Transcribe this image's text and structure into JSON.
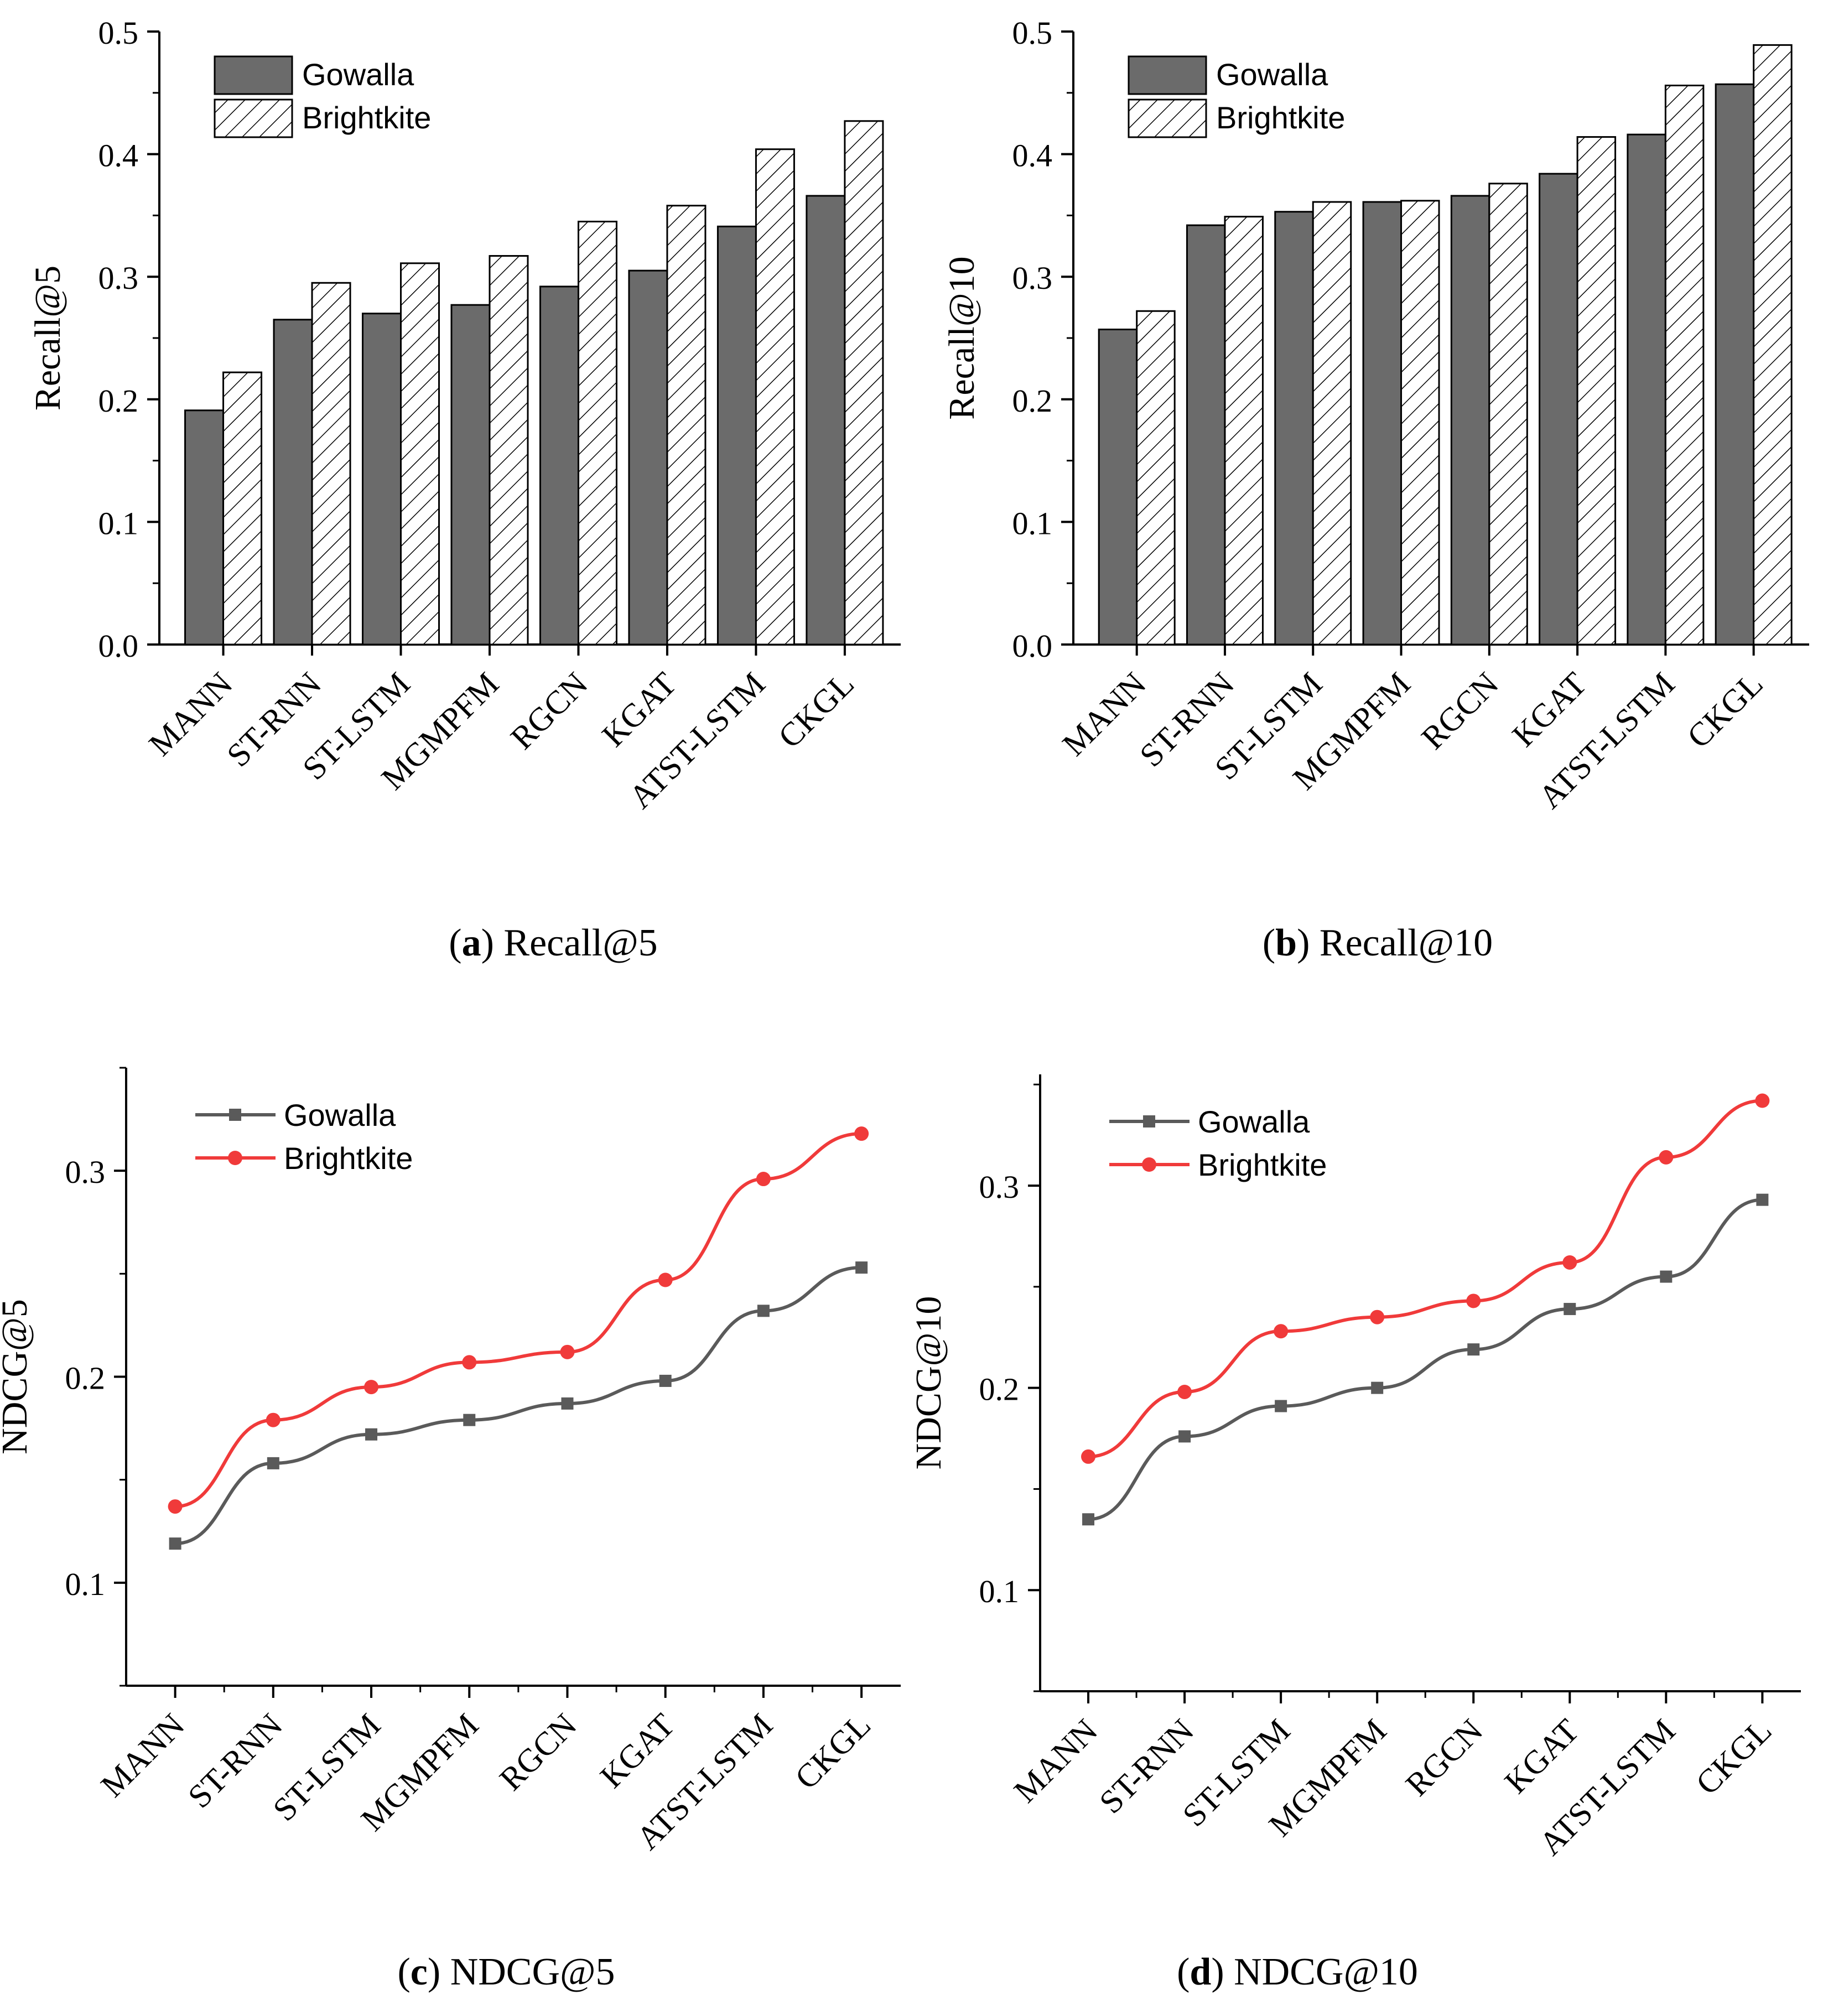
{
  "colors": {
    "gowalla_bar": "#6b6b6b",
    "gowalla_line": "#5a5a5a",
    "brightkite_line": "#f03a3a",
    "axis": "#000000"
  },
  "chart_data": [
    {
      "id": "a",
      "type": "bar",
      "caption_label": "a",
      "caption_text": "Recall@5",
      "ylabel": "Recall@5",
      "xlabel": "",
      "ylim": [
        0,
        0.5
      ],
      "yticks": [
        "0.0",
        "0.1",
        "0.2",
        "0.3",
        "0.4",
        "0.5"
      ],
      "categories": [
        "MANN",
        "ST-RNN",
        "ST-LSTM",
        "MGMPFM",
        "RGCN",
        "KGAT",
        "ATST-LSTM",
        "CKGL"
      ],
      "legend_position": "top-left",
      "series": [
        {
          "name": "Gowalla",
          "style": "solid",
          "values": [
            0.191,
            0.265,
            0.27,
            0.277,
            0.292,
            0.305,
            0.341,
            0.366
          ]
        },
        {
          "name": "Brightkite",
          "style": "hatched",
          "values": [
            0.222,
            0.295,
            0.311,
            0.317,
            0.345,
            0.358,
            0.404,
            0.427
          ]
        }
      ]
    },
    {
      "id": "b",
      "type": "bar",
      "caption_label": "b",
      "caption_text": "Recall@10",
      "ylabel": "Recall@10",
      "xlabel": "",
      "ylim": [
        0,
        0.5
      ],
      "yticks": [
        "0.0",
        "0.1",
        "0.2",
        "0.3",
        "0.4",
        "0.5"
      ],
      "categories": [
        "MANN",
        "ST-RNN",
        "ST-LSTM",
        "MGMPFM",
        "RGCN",
        "KGAT",
        "ATST-LSTM",
        "CKGL"
      ],
      "legend_position": "top-left",
      "series": [
        {
          "name": "Gowalla",
          "style": "solid",
          "values": [
            0.257,
            0.342,
            0.353,
            0.361,
            0.366,
            0.384,
            0.416,
            0.457
          ]
        },
        {
          "name": "Brightkite",
          "style": "hatched",
          "values": [
            0.272,
            0.349,
            0.361,
            0.362,
            0.376,
            0.414,
            0.456,
            0.489
          ]
        }
      ]
    },
    {
      "id": "c",
      "type": "line",
      "caption_label": "c",
      "caption_text": "NDCG@5",
      "ylabel": "NDCG@5",
      "xlabel": "",
      "ylim": [
        0.05,
        0.35
      ],
      "yticks": [
        "0.1",
        "0.2",
        "0.3"
      ],
      "categories": [
        "MANN",
        "ST-RNN",
        "ST-LSTM",
        "MGMPFM",
        "RGCN",
        "KGAT",
        "ATST-LSTM",
        "CKGL"
      ],
      "legend_position": "top-left",
      "series": [
        {
          "name": "Gowalla",
          "marker": "square",
          "values": [
            0.119,
            0.158,
            0.172,
            0.179,
            0.187,
            0.198,
            0.232,
            0.253
          ]
        },
        {
          "name": "Brightkite",
          "marker": "circle",
          "values": [
            0.137,
            0.179,
            0.195,
            0.207,
            0.212,
            0.247,
            0.296,
            0.318
          ]
        }
      ]
    },
    {
      "id": "d",
      "type": "line",
      "caption_label": "d",
      "caption_text": "NDCG@10",
      "ylabel": "NDCG@10",
      "xlabel": "",
      "ylim": [
        0.05,
        0.355
      ],
      "yticks": [
        "0.1",
        "0.2",
        "0.3"
      ],
      "categories": [
        "MANN",
        "ST-RNN",
        "ST-LSTM",
        "MGMPFM",
        "RGCN",
        "KGAT",
        "ATST-LSTM",
        "CKGL"
      ],
      "legend_position": "top-left",
      "series": [
        {
          "name": "Gowalla",
          "marker": "square",
          "values": [
            0.135,
            0.176,
            0.191,
            0.2,
            0.219,
            0.239,
            0.255,
            0.293
          ]
        },
        {
          "name": "Brightkite",
          "marker": "circle",
          "values": [
            0.166,
            0.198,
            0.228,
            0.235,
            0.243,
            0.262,
            0.314,
            0.342
          ]
        }
      ]
    }
  ]
}
